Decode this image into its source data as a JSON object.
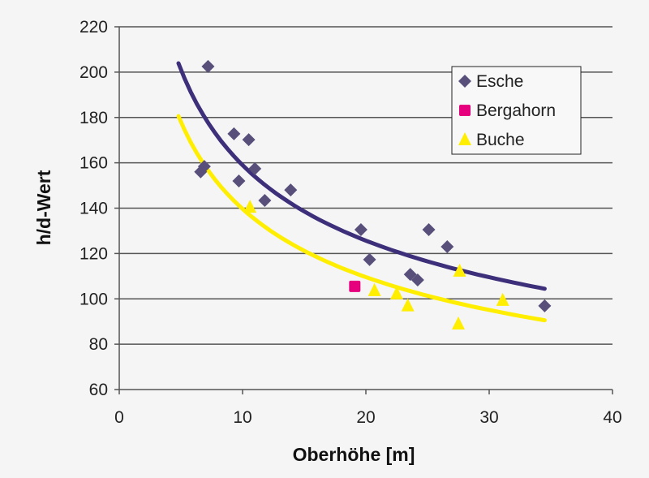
{
  "chart_data": {
    "type": "scatter",
    "title": "",
    "xlabel": "Oberhöhe [m]",
    "ylabel": "h/d-Wert",
    "xlim": [
      0,
      40
    ],
    "ylim": [
      60,
      220
    ],
    "xticks": [
      0,
      10,
      20,
      30,
      40
    ],
    "yticks": [
      60,
      80,
      100,
      120,
      140,
      160,
      180,
      200,
      220
    ],
    "grid": "horizontal",
    "legend_position": "top-right",
    "series": [
      {
        "name": "Esche",
        "marker": "diamond",
        "color": "#58507a",
        "points": [
          [
            7.2,
            202.5
          ],
          [
            6.9,
            158.4
          ],
          [
            6.6,
            156
          ],
          [
            9.3,
            172.8
          ],
          [
            10.5,
            170.2
          ],
          [
            11.0,
            157.4
          ],
          [
            9.7,
            152
          ],
          [
            11.8,
            143.4
          ],
          [
            13.9,
            148
          ],
          [
            19.6,
            130.5
          ],
          [
            20.3,
            117.3
          ],
          [
            25.1,
            130.5
          ],
          [
            26.6,
            123
          ],
          [
            23.6,
            110.8
          ],
          [
            24.2,
            108.3
          ],
          [
            34.5,
            96.9
          ]
        ],
        "trend": {
          "type": "power",
          "a": 347,
          "b": -0.339,
          "x_range": [
            4.8,
            34.5
          ],
          "color": "#3d2f7a"
        }
      },
      {
        "name": "Bergahorn",
        "marker": "square",
        "color": "#e6007e",
        "points": [
          [
            19.1,
            105.5
          ]
        ]
      },
      {
        "name": "Buche",
        "marker": "triangle",
        "color": "#ffee00",
        "points": [
          [
            10.6,
            140.5
          ],
          [
            20.7,
            103.7
          ],
          [
            22.5,
            102.3
          ],
          [
            23.4,
            97
          ],
          [
            27.6,
            112.3
          ],
          [
            27.5,
            89
          ],
          [
            31.1,
            99.4
          ]
        ],
        "trend": {
          "type": "power",
          "a": 312.7,
          "b": -0.35,
          "x_range": [
            4.8,
            34.5
          ],
          "color": "#ffee00"
        }
      }
    ]
  }
}
